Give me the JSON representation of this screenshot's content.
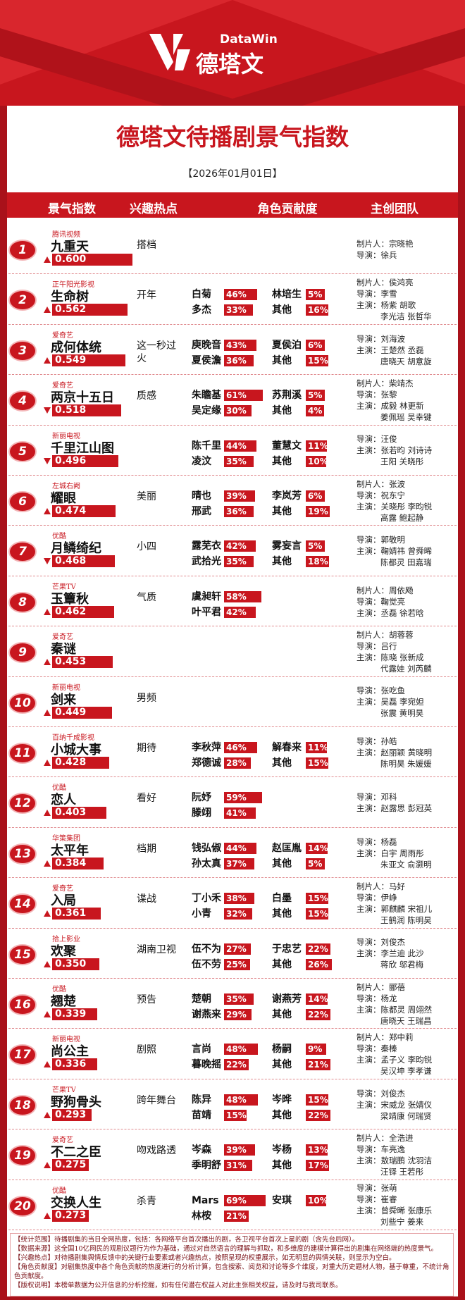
{
  "header": {
    "logo_latin": "DataWin",
    "logo_cn": "德塔文",
    "title": "德塔文待播剧景气指数",
    "date": "【2026年01月01日】"
  },
  "columns": [
    "景气指数",
    "兴趣热点",
    "角色贡献度",
    "主创团队"
  ],
  "rows": [
    {
      "rank": 1,
      "platform": "腾讯视频",
      "name": "九重天",
      "index": 0.6,
      "index_label": "0.600",
      "trend": "up",
      "hotspot": "搭档",
      "roles": [],
      "team": [
        "制片人：宗晓艳",
        "导演：徐兵"
      ]
    },
    {
      "rank": 2,
      "platform": "正午阳光影视",
      "name": "生命树",
      "index": 0.562,
      "index_label": "0.562",
      "trend": "up",
      "hotspot": "开年",
      "roles": [
        [
          {
            "name": "白菊",
            "value": 46,
            "label": "46%"
          },
          {
            "name": "多杰",
            "value": 33,
            "label": "33%"
          }
        ],
        [
          {
            "name": "林培生",
            "value": 5,
            "label": "5%"
          },
          {
            "name": "其他",
            "value": 16,
            "label": "16%"
          }
        ]
      ],
      "team": [
        "制片人：侯鸿亮",
        "导演：李雪",
        "主演：杨紫 胡歌",
        "李光洁 张哲华"
      ]
    },
    {
      "rank": 3,
      "platform": "爱奇艺",
      "name": "成何体统",
      "index": 0.549,
      "index_label": "0.549",
      "trend": "up",
      "hotspot": "这一秒过火",
      "roles": [
        [
          {
            "name": "庾晚音",
            "value": 43,
            "label": "43%"
          },
          {
            "name": "夏侯澹",
            "value": 36,
            "label": "36%"
          }
        ],
        [
          {
            "name": "夏侯泊",
            "value": 6,
            "label": "6%"
          },
          {
            "name": "其他",
            "value": 15,
            "label": "15%"
          }
        ]
      ],
      "team": [
        "导演：刘海波",
        "主演：王楚然 丞磊",
        "唐晓天 胡意旋"
      ]
    },
    {
      "rank": 4,
      "platform": "爱奇艺",
      "name": "两京十五日",
      "index": 0.518,
      "index_label": "0.518",
      "trend": "down",
      "hotspot": "质感",
      "roles": [
        [
          {
            "name": "朱瞻基",
            "value": 61,
            "label": "61%"
          },
          {
            "name": "吴定缘",
            "value": 30,
            "label": "30%"
          }
        ],
        [
          {
            "name": "苏荆溪",
            "value": 5,
            "label": "5%"
          },
          {
            "name": "其他",
            "value": 4,
            "label": "4%"
          }
        ]
      ],
      "team": [
        "制片人：柴靖杰",
        "导演：张黎",
        "主演：成毅 林更新",
        "姜佩瑶 吴幸键"
      ]
    },
    {
      "rank": 5,
      "platform": "新丽电视",
      "name": "千里江山图",
      "index": 0.496,
      "index_label": "0.496",
      "trend": "down",
      "hotspot": "",
      "roles": [
        [
          {
            "name": "陈千里",
            "value": 44,
            "label": "44%"
          },
          {
            "name": "凌汶",
            "value": 35,
            "label": "35%"
          }
        ],
        [
          {
            "name": "董慧文",
            "value": 11,
            "label": "11%"
          },
          {
            "name": "其他",
            "value": 10,
            "label": "10%"
          }
        ]
      ],
      "team": [
        "导演：汪俊",
        "主演：张若昀 刘诗诗",
        "王阳 关晓彤"
      ]
    },
    {
      "rank": 6,
      "platform": "左城右阙",
      "name": "耀眼",
      "index": 0.474,
      "index_label": "0.474",
      "trend": "up",
      "hotspot": "美丽",
      "roles": [
        [
          {
            "name": "晴也",
            "value": 39,
            "label": "39%"
          },
          {
            "name": "邢武",
            "value": 36,
            "label": "36%"
          }
        ],
        [
          {
            "name": "李岚芳",
            "value": 6,
            "label": "6%"
          },
          {
            "name": "其他",
            "value": 19,
            "label": "19%"
          }
        ]
      ],
      "team": [
        "制片人：张波",
        "导演：祝东宁",
        "主演：关晓彤 李昀锐",
        "高露 鲍起静"
      ]
    },
    {
      "rank": 7,
      "platform": "优酷",
      "name": "月鳞绮纪",
      "index": 0.468,
      "index_label": "0.468",
      "trend": "down",
      "hotspot": "小四",
      "roles": [
        [
          {
            "name": "露芜衣",
            "value": 42,
            "label": "42%"
          },
          {
            "name": "武拾光",
            "value": 35,
            "label": "35%"
          }
        ],
        [
          {
            "name": "雾妄言",
            "value": 5,
            "label": "5%"
          },
          {
            "name": "其他",
            "value": 18,
            "label": "18%"
          }
        ]
      ],
      "team": [
        "导演：郭敬明",
        "主演：鞠婧祎 曾舜晞",
        "陈都灵 田嘉瑞"
      ]
    },
    {
      "rank": 8,
      "platform": "芒果TV",
      "name": "玉簟秋",
      "index": 0.462,
      "index_label": "0.462",
      "trend": "up",
      "hotspot": "气质",
      "roles": [
        [
          {
            "name": "虞昶轩",
            "value": 58,
            "label": "58%"
          },
          {
            "name": "叶平君",
            "value": 42,
            "label": "42%"
          }
        ]
      ],
      "team": [
        "制片人：周依飏",
        "导演：鞠觉亮",
        "主演：丞磊 徐若晗"
      ]
    },
    {
      "rank": 9,
      "platform": "爱奇艺",
      "name": "秦谜",
      "index": 0.453,
      "index_label": "0.453",
      "trend": "up",
      "hotspot": "",
      "roles": [],
      "team": [
        "制片人：胡蓉蓉",
        "导演：吕行",
        "主演：陈晓 张新成",
        "代露娃 刘芮麟"
      ]
    },
    {
      "rank": 10,
      "platform": "新丽电视",
      "name": "剑来",
      "index": 0.449,
      "index_label": "0.449",
      "trend": "up",
      "hotspot": "男频",
      "roles": [],
      "team": [
        "导演：张吃鱼",
        "主演：吴磊 李宛妲",
        "张震 黄明昊"
      ]
    },
    {
      "rank": 11,
      "platform": "百纳千成影视",
      "name": "小城大事",
      "index": 0.428,
      "index_label": "0.428",
      "trend": "up",
      "hotspot": "期待",
      "roles": [
        [
          {
            "name": "李秋萍",
            "value": 46,
            "label": "46%"
          },
          {
            "name": "郑德诚",
            "value": 28,
            "label": "28%"
          }
        ],
        [
          {
            "name": "解春来",
            "value": 11,
            "label": "11%"
          },
          {
            "name": "其他",
            "value": 15,
            "label": "15%"
          }
        ]
      ],
      "team": [
        "导演：孙皓",
        "主演：赵丽颖 黄晓明",
        "陈明昊 朱媛媛"
      ]
    },
    {
      "rank": 12,
      "platform": "优酷",
      "name": "恋人",
      "index": 0.403,
      "index_label": "0.403",
      "trend": "up",
      "hotspot": "看好",
      "roles": [
        [
          {
            "name": "阮妤",
            "value": 59,
            "label": "59%"
          },
          {
            "name": "滕翊",
            "value": 41,
            "label": "41%"
          }
        ]
      ],
      "team": [
        "导演：邓科",
        "主演：赵露思 彭冠英"
      ]
    },
    {
      "rank": 13,
      "platform": "华策集团",
      "name": "太平年",
      "index": 0.384,
      "index_label": "0.384",
      "trend": "up",
      "hotspot": "档期",
      "roles": [
        [
          {
            "name": "钱弘俶",
            "value": 44,
            "label": "44%"
          },
          {
            "name": "孙太真",
            "value": 37,
            "label": "37%"
          }
        ],
        [
          {
            "name": "赵匡胤",
            "value": 14,
            "label": "14%"
          },
          {
            "name": "其他",
            "value": 5,
            "label": "5%"
          }
        ]
      ],
      "team": [
        "导演：杨磊",
        "主演：白宇 周雨彤",
        "朱亚文 俞灏明"
      ]
    },
    {
      "rank": 14,
      "platform": "爱奇艺",
      "name": "入局",
      "index": 0.361,
      "index_label": "0.361",
      "trend": "up",
      "hotspot": "谍战",
      "roles": [
        [
          {
            "name": "丁小禾",
            "value": 38,
            "label": "38%"
          },
          {
            "name": "小青",
            "value": 32,
            "label": "32%"
          }
        ],
        [
          {
            "name": "白墨",
            "value": 15,
            "label": "15%"
          },
          {
            "name": "其他",
            "value": 15,
            "label": "15%"
          }
        ]
      ],
      "team": [
        "制片人：马好",
        "导演：伊峥",
        "主演：郭麒麟 宋祖儿",
        "王鹤润 陈明昊"
      ]
    },
    {
      "rank": 15,
      "platform": "拾上影业",
      "name": "欢聚",
      "index": 0.35,
      "index_label": "0.350",
      "trend": "up",
      "hotspot": "湖南卫视",
      "roles": [
        [
          {
            "name": "伍不为",
            "value": 27,
            "label": "27%"
          },
          {
            "name": "伍不劳",
            "value": 25,
            "label": "25%"
          }
        ],
        [
          {
            "name": "于忠艺",
            "value": 22,
            "label": "22%"
          },
          {
            "name": "其他",
            "value": 26,
            "label": "26%"
          }
        ]
      ],
      "team": [
        "导演：刘俊杰",
        "主演：李兰迪 此沙",
        "蒋欣 邬君梅"
      ]
    },
    {
      "rank": 16,
      "platform": "优酷",
      "name": "翘楚",
      "index": 0.339,
      "index_label": "0.339",
      "trend": "up",
      "hotspot": "预告",
      "roles": [
        [
          {
            "name": "楚朝",
            "value": 35,
            "label": "35%"
          },
          {
            "name": "谢燕来",
            "value": 29,
            "label": "29%"
          }
        ],
        [
          {
            "name": "谢燕芳",
            "value": 14,
            "label": "14%"
          },
          {
            "name": "其他",
            "value": 22,
            "label": "22%"
          }
        ]
      ],
      "team": [
        "制片人：郦蓓",
        "导演：杨龙",
        "主演：陈都灵 周翊然",
        "唐晓天 王瑞昌"
      ]
    },
    {
      "rank": 17,
      "platform": "新丽电视",
      "name": "尚公主",
      "index": 0.336,
      "index_label": "0.336",
      "trend": "up",
      "hotspot": "剧照",
      "roles": [
        [
          {
            "name": "言尚",
            "value": 48,
            "label": "48%"
          },
          {
            "name": "暮晚摇",
            "value": 22,
            "label": "22%"
          }
        ],
        [
          {
            "name": "杨嗣",
            "value": 9,
            "label": "9%"
          },
          {
            "name": "其他",
            "value": 21,
            "label": "21%"
          }
        ]
      ],
      "team": [
        "制片人：郑中莉",
        "导演：秦榛",
        "主演：孟子义 李昀锐",
        "吴汉坤 李孝谦"
      ]
    },
    {
      "rank": 18,
      "platform": "芒果TV",
      "name": "野狗骨头",
      "index": 0.293,
      "index_label": "0.293",
      "trend": "up",
      "hotspot": "跨年舞台",
      "roles": [
        [
          {
            "name": "陈异",
            "value": 48,
            "label": "48%"
          },
          {
            "name": "苗靖",
            "value": 15,
            "label": "15%"
          }
        ],
        [
          {
            "name": "岑晔",
            "value": 15,
            "label": "15%"
          },
          {
            "name": "其他",
            "value": 22,
            "label": "22%"
          }
        ]
      ],
      "team": [
        "导演：刘俊杰",
        "主演：宋威龙 张婧仪",
        "梁靖康 何瑞贤"
      ]
    },
    {
      "rank": 19,
      "platform": "爱奇艺",
      "name": "不二之臣",
      "index": 0.275,
      "index_label": "0.275",
      "trend": "up",
      "hotspot": "吻戏路透",
      "roles": [
        [
          {
            "name": "岑森",
            "value": 39,
            "label": "39%"
          },
          {
            "name": "季明舒",
            "value": 31,
            "label": "31%"
          }
        ],
        [
          {
            "name": "岑杨",
            "value": 13,
            "label": "13%"
          },
          {
            "name": "其他",
            "value": 17,
            "label": "17%"
          }
        ]
      ],
      "team": [
        "制片人：全浩进",
        "导演：车亮逸",
        "主演：敖瑞鹏 沈羽洁",
        "汪铎 王若彤"
      ]
    },
    {
      "rank": 20,
      "platform": "优酷",
      "name": "交换人生",
      "index": 0.273,
      "index_label": "0.273",
      "trend": "up",
      "hotspot": "杀青",
      "roles": [
        [
          {
            "name": "Mars",
            "value": 69,
            "label": "69%"
          },
          {
            "name": "林桉",
            "value": 21,
            "label": "21%"
          }
        ],
        [
          {
            "name": "安琪",
            "value": 10,
            "label": "10%"
          }
        ]
      ],
      "team": [
        "导演：张萌",
        "导演：崔睿",
        "主演：曾舜晞 张康乐",
        "刘些宁 姜来"
      ]
    }
  ],
  "notes": [
    "【统计范围】待播剧集的当日全网热度，包括：各网络平台首次播出的剧，各卫视平台首次上星的剧（含先台后网）。",
    "【数据来源】这全国10亿网民的观剧议题行为作为基础，通过对自然语言的理解与抓取，和多维度的建模计算得出的剧集在网络端的热度景气。",
    "【兴趣热点】对待播剧集舆情反馈中的关键行业要素或者兴趣热点，按照呈现的权重展示，如无明显的舆情关联，则显示为空白。",
    "【角色贡献度】对剧集热度中各个角色贡献的热度进行的分析计算，包含搜索、阅览和讨论等多个维度，对重大历史题材人物，基于尊重，不统计角色贡献度。",
    "【版权说明】本榜单数据为公开信息的分析挖掘，如有任何潜在权益人对此主张相关权益，请及时与我司联系。"
  ]
}
